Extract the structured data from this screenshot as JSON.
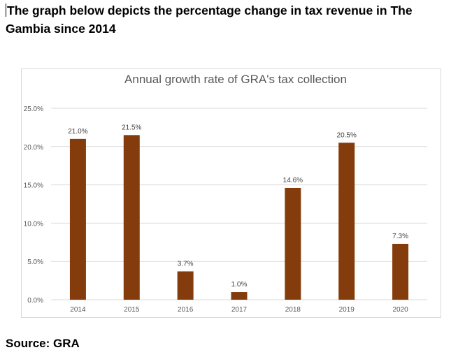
{
  "heading": "The graph below depicts the percentage change in tax revenue in The Gambia since 2014",
  "source": "Source: GRA",
  "colors": {
    "bar": "#843c0c",
    "grid": "#d9d9d9",
    "axis_text": "#595959",
    "title": "#595959"
  },
  "chart_data": {
    "type": "bar",
    "title": "Annual growth rate of GRA's tax collection",
    "xlabel": "",
    "ylabel": "",
    "categories": [
      "2014",
      "2015",
      "2016",
      "2017",
      "2018",
      "2019",
      "2020"
    ],
    "values": [
      21.0,
      21.5,
      3.7,
      1.0,
      14.6,
      20.5,
      7.3
    ],
    "data_labels": [
      "21.0%",
      "21.5%",
      "3.7%",
      "1.0%",
      "14.6%",
      "20.5%",
      "7.3%"
    ],
    "yticks": [
      0,
      5,
      10,
      15,
      20,
      25
    ],
    "ytick_labels": [
      "0.0%",
      "5.0%",
      "10.0%",
      "15.0%",
      "20.0%",
      "25.0%"
    ],
    "ylim": [
      0,
      25
    ],
    "grid": true,
    "legend": "none"
  }
}
